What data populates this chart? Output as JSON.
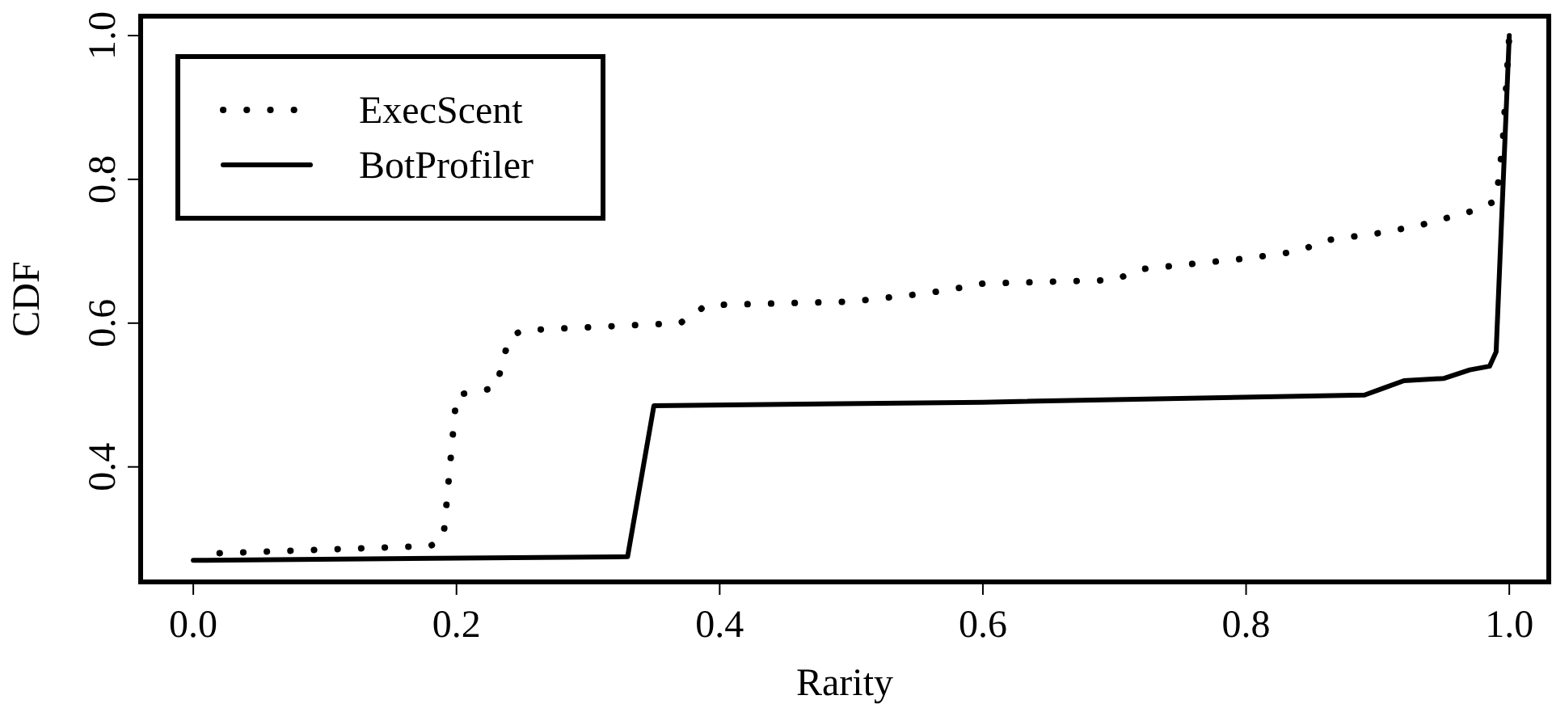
{
  "chart_data": {
    "type": "line",
    "xlabel": "Rarity",
    "ylabel": "CDF",
    "xlim": [
      -0.04,
      1.03
    ],
    "ylim": [
      0.24,
      1.027
    ],
    "xticks": [
      {
        "value": 0,
        "label": "0.0"
      },
      0.2,
      0.4,
      0.6,
      0.8,
      {
        "value": 1,
        "label": "1.0"
      }
    ],
    "yticks": [
      0.4,
      0.6,
      0.8,
      {
        "value": 1,
        "label": "1.0"
      }
    ],
    "legend": "top left",
    "grid": false,
    "series": [
      {
        "name": "ExecScent",
        "color": "#000000",
        "line_style": "dotted",
        "x": [
          0.02,
          0.18,
          0.19,
          0.2,
          0.23,
          0.24,
          0.25,
          0.37,
          0.39,
          0.5,
          0.55,
          0.57,
          0.6,
          0.7,
          0.72,
          0.8,
          0.84,
          0.86,
          0.9,
          0.93,
          0.95,
          0.97,
          0.99,
          0.995,
          1.0
        ],
        "values": [
          0.28,
          0.29,
          0.3,
          0.5,
          0.51,
          0.58,
          0.59,
          0.6,
          0.625,
          0.63,
          0.64,
          0.645,
          0.655,
          0.66,
          0.675,
          0.69,
          0.7,
          0.715,
          0.725,
          0.735,
          0.745,
          0.755,
          0.77,
          0.85,
          1.0
        ]
      },
      {
        "name": "BotProfiler",
        "color": "#000000",
        "line_style": "solid",
        "x": [
          0,
          0.33,
          0.35,
          0.6,
          0.89,
          0.905,
          0.92,
          0.95,
          0.97,
          0.985,
          0.99,
          1.0
        ],
        "values": [
          0.27,
          0.275,
          0.485,
          0.49,
          0.5,
          0.51,
          0.52,
          0.523,
          0.535,
          0.54,
          0.56,
          1.0
        ]
      }
    ]
  }
}
